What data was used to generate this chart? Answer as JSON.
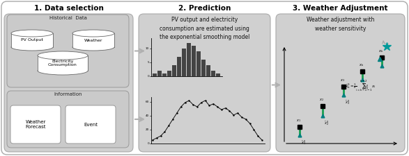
{
  "title1": "1. Data selection",
  "title2": "2. Prediction",
  "title3": "3. Weather Adjustment",
  "hist_data_label": "Historical  Data",
  "db1_label": "PV Output",
  "db2_label": "Weather",
  "db3_label": "Electricity\nConsumption",
  "info_label": "Information",
  "wf_label": "Weather\nForecast",
  "event_label": "Event",
  "pred_text": "PV output and electricity\nconsumption are estimated using\nthe exponential smoothing model",
  "weather_adj_text": "Weather adjustment with\nweather sensitivity",
  "outer_bg": "#ffffff",
  "panel_bg": "#d0d0d0",
  "subbox_bg": "#c0c0c0",
  "white": "#ffffff",
  "border_color": "#999999",
  "arrow_color": "#b0b0b0",
  "bar_color": "#444444",
  "line_color": "#111111",
  "green_color": "#1a9e50",
  "teal_color": "#008080",
  "star_color": "#009999",
  "dark_color": "#111111",
  "title_fontsize": 7.5,
  "label_fontsize": 5.5,
  "pred_fontsize": 5.5
}
